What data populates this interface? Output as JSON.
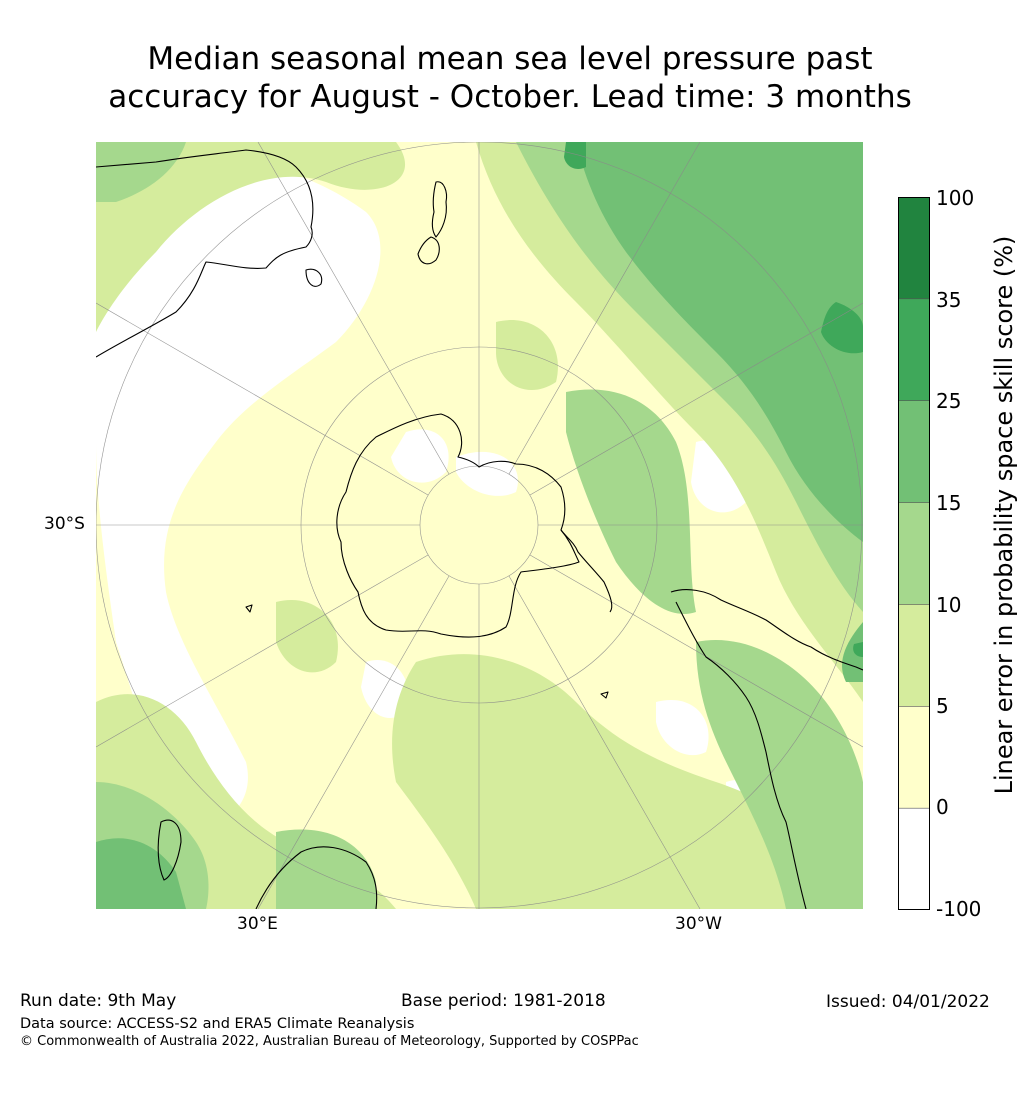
{
  "title": {
    "line1": "Median seasonal mean sea level pressure past",
    "line2": "accuracy for August - October. Lead time: 3 months"
  },
  "map": {
    "projection": "south-polar-stereographic",
    "lat_label": "30°S",
    "lon_labels": [
      "30°E",
      "30°W"
    ]
  },
  "colorbar": {
    "label": "Linear error in probability space skill score (%)",
    "ticks": [
      "100",
      "35",
      "25",
      "15",
      "10",
      "5",
      "0",
      "-100"
    ],
    "colors": [
      "#21843f",
      "#3fa85a",
      "#72c075",
      "#a5d88d",
      "#d5ec9d",
      "#ffffcb",
      "#ffffff"
    ]
  },
  "footer": {
    "run_date": "Run date: 9th May",
    "base_period": "Base period: 1981-2018",
    "issued": "Issued: 04/01/2022",
    "data_source": "Data source: ACCESS-S2 and ERA5 Climate Reanalysis",
    "copyright": "© Commonwealth of Australia 2022, Australian Bureau of Meteorology, Supported by COSPPac"
  }
}
